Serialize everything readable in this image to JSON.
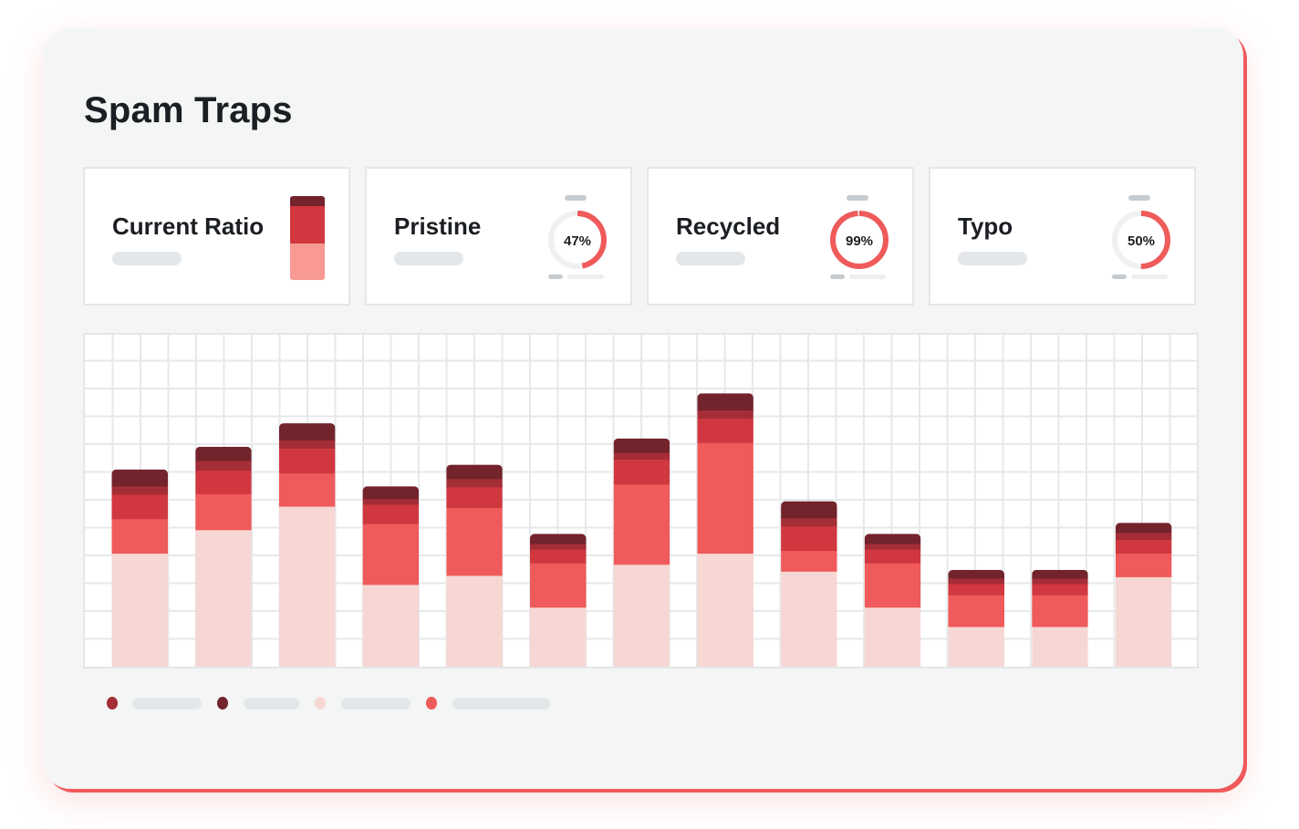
{
  "title": "Spam Traps",
  "colors": {
    "darkest": "#72232c",
    "dark": "#a42d36",
    "mid": "#d1373f",
    "accent": "#ef5a5a",
    "light": "#f7d7d4",
    "ratio_light": "#f89a93",
    "track": "#eef0f1"
  },
  "stats": [
    {
      "label": "Current Ratio",
      "kind": "ratio-bar"
    },
    {
      "label": "Pristine",
      "kind": "donut",
      "percent_text": "47%",
      "value": 0.47
    },
    {
      "label": "Recycled",
      "kind": "donut",
      "percent_text": "99%",
      "value": 0.99
    },
    {
      "label": "Typo",
      "kind": "donut",
      "percent_text": "50%",
      "value": 0.5
    }
  ],
  "ratio_bar": [
    {
      "color": "#72232c",
      "value": 0.12
    },
    {
      "color": "#d1373f",
      "value": 0.44
    },
    {
      "color": "#f89a93",
      "value": 0.44
    }
  ],
  "chart_data": {
    "type": "bar",
    "stacked": true,
    "grid": true,
    "ylim": [
      0,
      12
    ],
    "categories": [
      "",
      "",
      "",
      "",
      "",
      "",
      "",
      "",
      "",
      "",
      "",
      "",
      ""
    ],
    "series": [
      {
        "color": "#f7d7d4",
        "values": [
          4.1,
          4.95,
          5.8,
          2.97,
          3.3,
          2.15,
          3.7,
          4.1,
          3.45,
          2.15,
          1.45,
          1.45,
          3.25
        ]
      },
      {
        "color": "#ef5a5a",
        "values": [
          1.25,
          1.3,
          1.2,
          2.2,
          2.45,
          1.6,
          2.9,
          4.0,
          0.75,
          1.6,
          1.15,
          1.15,
          0.85
        ]
      },
      {
        "color": "#d1373f",
        "values": [
          0.88,
          0.85,
          0.9,
          0.7,
          0.75,
          0.5,
          0.9,
          0.88,
          0.88,
          0.5,
          0.4,
          0.4,
          0.5
        ]
      },
      {
        "color": "#a42d36",
        "values": [
          0.3,
          0.35,
          0.3,
          0.2,
          0.3,
          0.2,
          0.25,
          0.3,
          0.3,
          0.2,
          0.2,
          0.2,
          0.25
        ]
      },
      {
        "color": "#72232c",
        "values": [
          0.6,
          0.5,
          0.6,
          0.45,
          0.5,
          0.35,
          0.5,
          0.6,
          0.6,
          0.35,
          0.3,
          0.3,
          0.35
        ]
      }
    ]
  },
  "legend": [
    {
      "color": "#a42d36"
    },
    {
      "color": "#72232c"
    },
    {
      "color": "#f7d7d4"
    },
    {
      "color": "#ef5a5a"
    }
  ]
}
